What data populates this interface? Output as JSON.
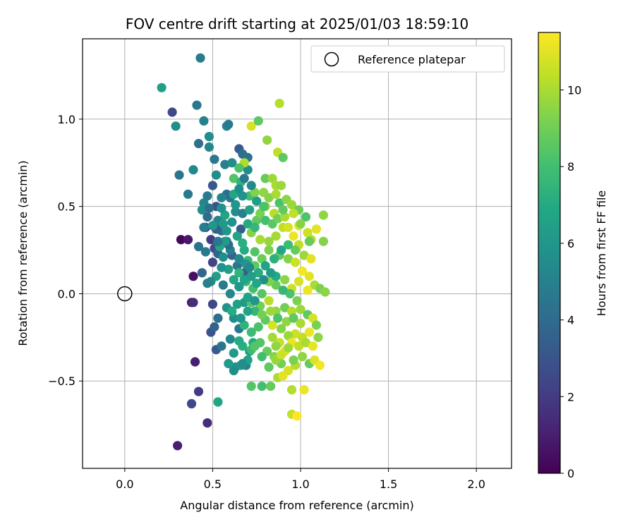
{
  "chart_data": {
    "type": "scatter",
    "title": "FOV centre drift starting at 2025/01/03 18:59:10",
    "xlabel": "Angular distance from reference (arcmin)",
    "ylabel": "Rotation from reference (arcmin)",
    "xlim": [
      -0.24,
      2.2
    ],
    "ylim": [
      -1.0,
      1.46
    ],
    "x_ticks": [
      0.0,
      0.5,
      1.0,
      1.5,
      2.0
    ],
    "x_tick_labels": [
      "0.0",
      "0.5",
      "1.0",
      "1.5",
      "2.0"
    ],
    "y_ticks": [
      -0.5,
      0.0,
      0.5,
      1.0
    ],
    "y_tick_labels": [
      "−0.5",
      "0.0",
      "0.5",
      "1.0"
    ],
    "grid": true,
    "legend": {
      "position": "top-right",
      "entries": [
        {
          "label": "Reference platepar",
          "marker": "open-circle"
        }
      ]
    },
    "reference_point": {
      "x": 0.0,
      "y": 0.0
    },
    "colorbar": {
      "label": "Hours from first FF file",
      "range": [
        0,
        11.5
      ],
      "ticks": [
        0,
        2,
        4,
        6,
        8,
        10
      ],
      "tick_labels": [
        "0",
        "2",
        "4",
        "6",
        "8",
        "10"
      ],
      "colormap": "viridis"
    },
    "points": [
      [
        0.43,
        1.35,
        4.8
      ],
      [
        0.21,
        1.18,
        6.5
      ],
      [
        0.27,
        1.04,
        2.5
      ],
      [
        0.29,
        0.96,
        5.6
      ],
      [
        0.41,
        1.08,
        4.6
      ],
      [
        0.45,
        0.99,
        5.0
      ],
      [
        0.48,
        0.9,
        5.6
      ],
      [
        0.58,
        0.96,
        5.0
      ],
      [
        0.59,
        0.97,
        4.7
      ],
      [
        0.42,
        0.86,
        4.2
      ],
      [
        0.48,
        0.84,
        5.2
      ],
      [
        0.31,
        0.68,
        4.5
      ],
      [
        0.39,
        0.71,
        5.4
      ],
      [
        0.36,
        0.57,
        4.7
      ],
      [
        0.51,
        0.77,
        4.6
      ],
      [
        0.57,
        0.74,
        4.9
      ],
      [
        0.61,
        0.75,
        5.5
      ],
      [
        0.65,
        0.83,
        3.3
      ],
      [
        0.67,
        0.8,
        4.2
      ],
      [
        0.7,
        0.78,
        4.3
      ],
      [
        0.7,
        0.71,
        5.5
      ],
      [
        0.88,
        1.09,
        10.2
      ],
      [
        0.72,
        0.96,
        10.8
      ],
      [
        0.76,
        0.99,
        8.6
      ],
      [
        0.81,
        0.88,
        9.6
      ],
      [
        0.87,
        0.81,
        10.4
      ],
      [
        0.9,
        0.78,
        8.6
      ],
      [
        0.68,
        0.75,
        10.1
      ],
      [
        0.65,
        0.72,
        8.2
      ],
      [
        0.32,
        0.31,
        0.2
      ],
      [
        0.36,
        0.31,
        0.8
      ],
      [
        0.39,
        0.1,
        0.5
      ],
      [
        0.38,
        -0.05,
        0.8
      ],
      [
        0.39,
        -0.05,
        1.5
      ],
      [
        0.4,
        -0.39,
        1.0
      ],
      [
        0.42,
        -0.56,
        2.0
      ],
      [
        0.38,
        -0.63,
        2.4
      ],
      [
        0.47,
        -0.74,
        1.5
      ],
      [
        0.3,
        -0.87,
        1.0
      ],
      [
        0.53,
        -0.62,
        6.7
      ],
      [
        0.5,
        -0.06,
        2.5
      ],
      [
        0.49,
        -0.22,
        3.0
      ],
      [
        0.51,
        -0.19,
        3.6
      ],
      [
        0.52,
        -0.32,
        3.3
      ],
      [
        0.55,
        -0.3,
        4.5
      ],
      [
        0.53,
        -0.14,
        4.3
      ],
      [
        0.45,
        0.52,
        5.3
      ],
      [
        0.47,
        0.44,
        4.1
      ],
      [
        0.5,
        0.62,
        3.2
      ],
      [
        0.52,
        0.5,
        3.0
      ],
      [
        0.46,
        0.38,
        2.3
      ],
      [
        0.49,
        0.31,
        2.0
      ],
      [
        0.51,
        0.26,
        2.7
      ],
      [
        0.42,
        0.27,
        4.4
      ],
      [
        0.5,
        0.18,
        2.3
      ],
      [
        0.53,
        0.23,
        3.7
      ],
      [
        0.55,
        0.36,
        4.3
      ],
      [
        0.58,
        0.3,
        5.4
      ],
      [
        0.6,
        0.55,
        4.5
      ],
      [
        0.63,
        0.47,
        5.5
      ],
      [
        0.66,
        0.37,
        3.3
      ],
      [
        0.61,
        0.22,
        3.7
      ],
      [
        0.64,
        0.16,
        4.5
      ],
      [
        0.68,
        0.12,
        3.5
      ],
      [
        0.57,
        0.45,
        6.7
      ],
      [
        0.54,
        0.27,
        6.7
      ],
      [
        0.52,
        0.1,
        6.4
      ],
      [
        0.49,
        0.07,
        5.4
      ],
      [
        0.47,
        0.06,
        5.0
      ],
      [
        0.56,
        0.05,
        4.8
      ],
      [
        0.6,
        0.0,
        5.3
      ],
      [
        0.58,
        -0.08,
        5.8
      ],
      [
        0.62,
        -0.14,
        5.6
      ],
      [
        0.65,
        -0.2,
        4.6
      ],
      [
        0.6,
        -0.26,
        5.3
      ],
      [
        0.63,
        -0.42,
        5.8
      ],
      [
        0.66,
        -0.41,
        6.0
      ],
      [
        0.69,
        -0.41,
        5.0
      ],
      [
        0.71,
        -0.33,
        6.4
      ],
      [
        0.73,
        -0.28,
        7.0
      ],
      [
        0.68,
        -0.05,
        6.2
      ],
      [
        0.62,
        0.66,
        8.4
      ],
      [
        0.66,
        0.64,
        7.5
      ],
      [
        0.71,
        0.56,
        7.9
      ],
      [
        0.74,
        0.58,
        9.3
      ],
      [
        0.79,
        0.58,
        9.6
      ],
      [
        0.8,
        0.66,
        8.8
      ],
      [
        0.84,
        0.66,
        9.8
      ],
      [
        0.86,
        0.62,
        10.0
      ],
      [
        0.89,
        0.62,
        9.8
      ],
      [
        0.8,
        0.5,
        9.6
      ],
      [
        0.85,
        0.46,
        10.3
      ],
      [
        0.88,
        0.52,
        8.2
      ],
      [
        0.92,
        0.54,
        9.5
      ],
      [
        0.95,
        0.51,
        9.8
      ],
      [
        0.99,
        0.48,
        8.9
      ],
      [
        1.03,
        0.44,
        8.3
      ],
      [
        0.99,
        0.39,
        11.0
      ],
      [
        1.04,
        0.35,
        10.6
      ],
      [
        1.09,
        0.37,
        11.0
      ],
      [
        1.06,
        0.31,
        10.2
      ],
      [
        1.13,
        0.3,
        9.4
      ],
      [
        1.13,
        0.45,
        9.6
      ],
      [
        0.9,
        0.38,
        10.4
      ],
      [
        0.86,
        0.33,
        9.9
      ],
      [
        0.82,
        0.3,
        9.7
      ],
      [
        0.77,
        0.31,
        10.0
      ],
      [
        0.72,
        0.35,
        9.4
      ],
      [
        0.75,
        0.42,
        8.6
      ],
      [
        0.78,
        0.2,
        8.9
      ],
      [
        0.74,
        0.16,
        8.6
      ],
      [
        0.7,
        0.19,
        7.7
      ],
      [
        0.68,
        0.25,
        7.0
      ],
      [
        0.74,
        0.24,
        8.4
      ],
      [
        0.82,
        0.25,
        9.2
      ],
      [
        0.88,
        0.22,
        8.7
      ],
      [
        0.93,
        0.2,
        9.4
      ],
      [
        0.97,
        0.18,
        10.6
      ],
      [
        1.01,
        0.13,
        11.3
      ],
      [
        1.05,
        0.1,
        11.0
      ],
      [
        1.08,
        0.05,
        10.0
      ],
      [
        1.11,
        0.03,
        9.2
      ],
      [
        1.14,
        0.01,
        9.5
      ],
      [
        1.04,
        0.02,
        11.2
      ],
      [
        0.99,
        0.07,
        10.8
      ],
      [
        0.95,
        0.03,
        10.6
      ],
      [
        0.91,
        0.08,
        9.5
      ],
      [
        0.86,
        0.05,
        8.8
      ],
      [
        0.82,
        0.07,
        9.3
      ],
      [
        0.78,
        0.0,
        8.5
      ],
      [
        0.73,
        0.03,
        8.0
      ],
      [
        0.69,
        0.07,
        7.7
      ],
      [
        0.65,
        0.12,
        7.4
      ],
      [
        0.72,
        -0.05,
        8.3
      ],
      [
        0.77,
        -0.07,
        9.0
      ],
      [
        0.82,
        -0.04,
        10.3
      ],
      [
        0.86,
        -0.1,
        9.6
      ],
      [
        0.91,
        -0.08,
        9.0
      ],
      [
        0.95,
        -0.1,
        10.2
      ],
      [
        1.0,
        -0.09,
        9.8
      ],
      [
        1.04,
        -0.12,
        8.6
      ],
      [
        1.07,
        -0.14,
        10.8
      ],
      [
        1.09,
        -0.18,
        9.2
      ],
      [
        1.05,
        -0.22,
        11.2
      ],
      [
        1.01,
        -0.25,
        10.4
      ],
      [
        0.97,
        -0.23,
        10.6
      ],
      [
        0.93,
        -0.24,
        9.8
      ],
      [
        0.89,
        -0.2,
        9.4
      ],
      [
        0.84,
        -0.18,
        10.8
      ],
      [
        0.8,
        -0.15,
        8.6
      ],
      [
        0.76,
        -0.19,
        8.2
      ],
      [
        0.72,
        -0.22,
        7.8
      ],
      [
        0.68,
        -0.18,
        7.4
      ],
      [
        0.67,
        -0.3,
        7.2
      ],
      [
        0.72,
        -0.32,
        7.8
      ],
      [
        0.77,
        -0.28,
        8.4
      ],
      [
        0.81,
        -0.33,
        8.8
      ],
      [
        0.85,
        -0.36,
        9.4
      ],
      [
        0.89,
        -0.4,
        9.0
      ],
      [
        0.93,
        -0.44,
        10.8
      ],
      [
        0.97,
        -0.41,
        10.2
      ],
      [
        1.01,
        -0.36,
        9.6
      ],
      [
        1.05,
        -0.4,
        8.8
      ],
      [
        1.08,
        -0.38,
        10.9
      ],
      [
        1.11,
        -0.41,
        11.3
      ],
      [
        1.1,
        -0.25,
        9.5
      ],
      [
        0.95,
        -0.28,
        11.2
      ],
      [
        0.91,
        -0.33,
        11.0
      ],
      [
        0.88,
        -0.28,
        10.5
      ],
      [
        0.84,
        -0.25,
        9.9
      ],
      [
        0.72,
        -0.53,
        8.4
      ],
      [
        0.78,
        -0.53,
        8.0
      ],
      [
        0.83,
        -0.53,
        8.8
      ],
      [
        0.87,
        -0.48,
        10.0
      ],
      [
        0.9,
        -0.47,
        11.0
      ],
      [
        0.95,
        -0.55,
        10.2
      ],
      [
        1.02,
        -0.55,
        11.2
      ],
      [
        0.95,
        -0.69,
        10.5
      ],
      [
        0.98,
        -0.7,
        11.5
      ],
      [
        0.86,
        -0.38,
        9.7
      ],
      [
        0.58,
        0.57,
        4.2
      ],
      [
        0.62,
        0.57,
        6.8
      ],
      [
        0.67,
        0.56,
        5.8
      ],
      [
        0.63,
        0.51,
        6.0
      ],
      [
        0.67,
        0.46,
        5.0
      ],
      [
        0.71,
        0.48,
        6.6
      ],
      [
        0.7,
        0.4,
        7.0
      ],
      [
        0.74,
        0.38,
        7.6
      ],
      [
        0.77,
        0.46,
        9.2
      ],
      [
        0.8,
        0.42,
        8.0
      ],
      [
        0.84,
        0.4,
        8.5
      ],
      [
        0.87,
        0.43,
        9.0
      ],
      [
        0.91,
        0.44,
        10.0
      ],
      [
        0.93,
        0.38,
        10.8
      ],
      [
        0.96,
        0.33,
        11.2
      ],
      [
        0.99,
        0.28,
        10.4
      ],
      [
        1.02,
        0.22,
        9.8
      ],
      [
        1.06,
        0.2,
        11.0
      ],
      [
        0.97,
        0.25,
        8.8
      ],
      [
        0.93,
        0.28,
        7.8
      ],
      [
        0.89,
        0.25,
        6.8
      ],
      [
        0.85,
        0.2,
        7.3
      ],
      [
        0.8,
        0.16,
        6.6
      ],
      [
        0.76,
        0.12,
        7.0
      ],
      [
        0.72,
        0.1,
        6.4
      ],
      [
        0.69,
        0.17,
        6.0
      ],
      [
        0.65,
        0.2,
        5.4
      ],
      [
        0.6,
        0.25,
        5.0
      ],
      [
        0.58,
        0.36,
        6.0
      ],
      [
        0.61,
        0.41,
        5.8
      ],
      [
        0.64,
        0.33,
        6.6
      ],
      [
        0.67,
        0.29,
        7.2
      ],
      [
        0.55,
        0.49,
        5.8
      ],
      [
        0.53,
        0.42,
        5.2
      ],
      [
        0.56,
        0.4,
        6.2
      ],
      [
        0.59,
        0.28,
        4.0
      ],
      [
        0.56,
        0.21,
        5.6
      ],
      [
        0.59,
        0.14,
        6.4
      ],
      [
        0.62,
        0.08,
        6.8
      ],
      [
        0.65,
        0.04,
        6.0
      ],
      [
        0.7,
        -0.02,
        6.6
      ],
      [
        0.74,
        -0.1,
        7.6
      ],
      [
        0.78,
        -0.12,
        9.0
      ],
      [
        0.83,
        -0.1,
        9.8
      ],
      [
        0.87,
        -0.14,
        8.2
      ],
      [
        0.92,
        -0.16,
        9.6
      ],
      [
        0.96,
        -0.14,
        8.6
      ],
      [
        1.0,
        -0.17,
        10.0
      ],
      [
        0.98,
        -0.04,
        9.2
      ],
      [
        0.94,
        0.0,
        8.2
      ],
      [
        0.9,
        0.02,
        7.6
      ],
      [
        0.86,
        0.1,
        7.0
      ],
      [
        0.83,
        0.12,
        6.2
      ],
      [
        0.79,
        0.08,
        5.6
      ],
      [
        0.75,
        0.06,
        6.8
      ],
      [
        0.71,
        0.15,
        5.4
      ],
      [
        0.68,
        0.08,
        6.6
      ],
      [
        0.64,
        -0.06,
        6.4
      ],
      [
        0.61,
        -0.1,
        7.0
      ],
      [
        0.66,
        -0.14,
        6.0
      ],
      [
        0.7,
        -0.1,
        6.6
      ],
      [
        0.74,
        -0.04,
        6.0
      ],
      [
        0.62,
        -0.34,
        6.2
      ],
      [
        0.65,
        -0.27,
        7.0
      ],
      [
        0.7,
        -0.38,
        6.6
      ],
      [
        0.74,
        -0.3,
        8.4
      ],
      [
        0.78,
        -0.36,
        8.0
      ],
      [
        0.82,
        -0.42,
        8.6
      ],
      [
        0.86,
        -0.3,
        9.6
      ],
      [
        0.89,
        -0.35,
        10.6
      ],
      [
        0.93,
        -0.31,
        9.8
      ],
      [
        0.96,
        -0.38,
        9.2
      ],
      [
        0.99,
        -0.3,
        10.4
      ],
      [
        1.03,
        -0.28,
        10.0
      ],
      [
        1.07,
        -0.3,
        11.1
      ],
      [
        0.62,
        -0.44,
        5.6
      ],
      [
        0.59,
        -0.4,
        6.2
      ],
      [
        0.67,
        -0.4,
        5.6
      ],
      [
        0.65,
        0.6,
        5.6
      ],
      [
        0.68,
        0.66,
        4.6
      ],
      [
        0.72,
        0.62,
        5.4
      ],
      [
        0.75,
        0.53,
        6.4
      ],
      [
        0.79,
        0.5,
        8.2
      ],
      [
        0.82,
        0.55,
        9.4
      ],
      [
        0.86,
        0.57,
        10.0
      ],
      [
        0.9,
        0.48,
        8.7
      ],
      [
        0.96,
        0.46,
        10.4
      ],
      [
        1.0,
        0.4,
        9.4
      ],
      [
        1.05,
        0.3,
        8.8
      ],
      [
        0.52,
        0.37,
        3.5
      ],
      [
        0.47,
        0.56,
        4.8
      ],
      [
        0.44,
        0.48,
        5.6
      ],
      [
        0.48,
        0.49,
        4.2
      ],
      [
        0.55,
        0.55,
        5.2
      ],
      [
        0.52,
        0.68,
        5.6
      ],
      [
        0.45,
        0.38,
        4.8
      ],
      [
        0.46,
        0.24,
        4.6
      ],
      [
        0.44,
        0.12,
        3.8
      ],
      [
        0.55,
        0.15,
        5.8
      ],
      [
        0.57,
        0.3,
        6.2
      ],
      [
        0.5,
        0.39,
        6.0
      ],
      [
        0.53,
        0.3,
        4.6
      ]
    ]
  }
}
